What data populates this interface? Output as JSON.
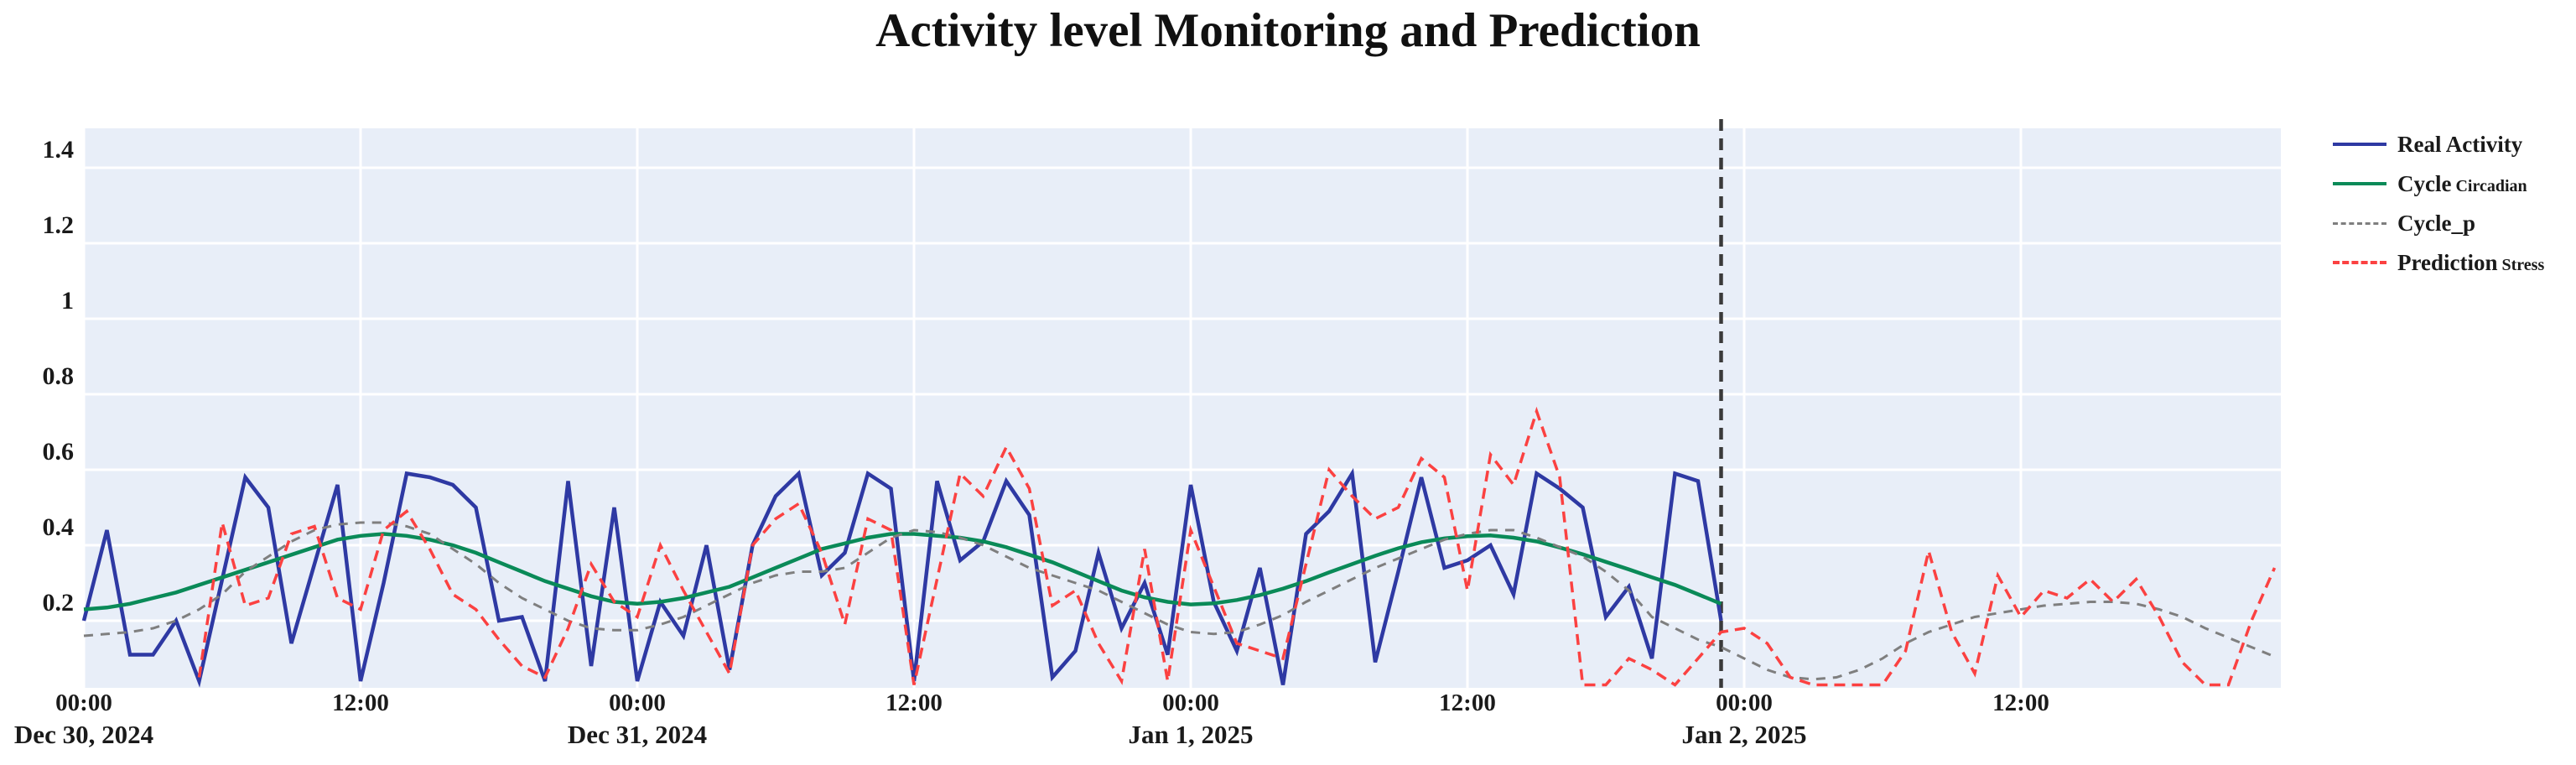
{
  "title": "Activity level Monitoring and Prediction",
  "legend": {
    "items": [
      {
        "label": "Real Activity",
        "sub": ""
      },
      {
        "label": "Cycle",
        "sub": "Circadian"
      },
      {
        "label": "Cycle_p",
        "sub": ""
      },
      {
        "label": "Prediction",
        "sub": "Stress"
      }
    ]
  },
  "chart_data": {
    "type": "line",
    "title": "Activity level Monitoring and Prediction",
    "xlabel": "",
    "ylabel": "",
    "x_axis": {
      "start": "Dec 30, 2024 00:00",
      "hours_per_point": 1,
      "total_hours_shown": 95,
      "tick_interval_hours": 12
    },
    "x_ticks": [
      {
        "hour": 0,
        "time": "00:00",
        "date": "Dec 30, 2024"
      },
      {
        "hour": 12,
        "time": "12:00",
        "date": ""
      },
      {
        "hour": 24,
        "time": "00:00",
        "date": "Dec 31, 2024"
      },
      {
        "hour": 36,
        "time": "12:00",
        "date": ""
      },
      {
        "hour": 48,
        "time": "00:00",
        "date": "Jan 1, 2025"
      },
      {
        "hour": 60,
        "time": "12:00",
        "date": ""
      },
      {
        "hour": 72,
        "time": "00:00",
        "date": "Jan 2, 2025"
      },
      {
        "hour": 84,
        "time": "12:00",
        "date": ""
      }
    ],
    "ytick_values": [
      0.2,
      0.4,
      0.6,
      0.8,
      1.0,
      1.2,
      1.4
    ],
    "ytick_labels": [
      "0.2",
      "0.4",
      "0.6",
      "0.8",
      "1",
      "1.2",
      "1.4"
    ],
    "ylim": [
      0.02,
      1.5
    ],
    "grid": true,
    "legend_position": "outside-right",
    "colors": {
      "plot_bg": "#e8eef8",
      "figure_bg": "#ffffff",
      "gridline": "#ffffff",
      "boundary_line": "#3a3a3a",
      "tick_text": "#1a1a1a"
    },
    "prediction_boundary": {
      "hour": 71,
      "style": "dashed-vertical-line",
      "meaning": "end of real data / start of prediction"
    },
    "series": [
      {
        "name": "Real Activity",
        "color": "#2e39a3",
        "line_style": "solid",
        "width": 4.5,
        "start_hour": 0,
        "values": [
          0.2,
          0.44,
          0.11,
          0.11,
          0.2,
          0.04,
          0.31,
          0.58,
          0.5,
          0.14,
          0.35,
          0.56,
          0.04,
          0.3,
          0.59,
          0.58,
          0.56,
          0.5,
          0.2,
          0.21,
          0.04,
          0.57,
          0.08,
          0.5,
          0.04,
          0.25,
          0.16,
          0.4,
          0.07,
          0.4,
          0.53,
          0.59,
          0.32,
          0.38,
          0.59,
          0.55,
          0.04,
          0.57,
          0.36,
          0.41,
          0.57,
          0.48,
          0.05,
          0.12,
          0.38,
          0.18,
          0.3,
          0.11,
          0.56,
          0.25,
          0.12,
          0.34,
          0.03,
          0.43,
          0.49,
          0.59,
          0.09,
          0.33,
          0.58,
          0.34,
          0.36,
          0.4,
          0.27,
          0.59,
          0.55,
          0.5,
          0.21,
          0.29,
          0.1,
          0.59,
          0.57,
          0.2
        ]
      },
      {
        "name": "Cycle Circadian",
        "color": "#0a8a58",
        "line_style": "solid",
        "width": 4.5,
        "start_hour": 0,
        "values": [
          0.23,
          0.235,
          0.245,
          0.26,
          0.275,
          0.295,
          0.315,
          0.335,
          0.355,
          0.375,
          0.395,
          0.415,
          0.425,
          0.43,
          0.425,
          0.415,
          0.4,
          0.38,
          0.355,
          0.33,
          0.305,
          0.285,
          0.265,
          0.25,
          0.245,
          0.25,
          0.26,
          0.275,
          0.29,
          0.315,
          0.34,
          0.365,
          0.39,
          0.405,
          0.42,
          0.43,
          0.43,
          0.425,
          0.42,
          0.41,
          0.395,
          0.375,
          0.355,
          0.33,
          0.305,
          0.28,
          0.262,
          0.25,
          0.243,
          0.246,
          0.255,
          0.268,
          0.285,
          0.305,
          0.328,
          0.35,
          0.372,
          0.392,
          0.408,
          0.418,
          0.424,
          0.426,
          0.42,
          0.41,
          0.394,
          0.376,
          0.356,
          0.336,
          0.315,
          0.295,
          0.27,
          0.245
        ]
      },
      {
        "name": "Cycle_p",
        "color": "#7f7f7f",
        "line_style": "dashed",
        "width": 3,
        "start_hour": 0,
        "values": [
          0.16,
          0.165,
          0.17,
          0.18,
          0.2,
          0.23,
          0.27,
          0.33,
          0.37,
          0.41,
          0.44,
          0.455,
          0.46,
          0.46,
          0.45,
          0.43,
          0.39,
          0.35,
          0.3,
          0.26,
          0.23,
          0.2,
          0.18,
          0.175,
          0.175,
          0.19,
          0.21,
          0.24,
          0.27,
          0.3,
          0.32,
          0.33,
          0.33,
          0.34,
          0.38,
          0.42,
          0.44,
          0.435,
          0.42,
          0.4,
          0.37,
          0.34,
          0.32,
          0.3,
          0.28,
          0.25,
          0.22,
          0.19,
          0.17,
          0.165,
          0.17,
          0.19,
          0.215,
          0.25,
          0.28,
          0.31,
          0.34,
          0.365,
          0.39,
          0.415,
          0.43,
          0.44,
          0.44,
          0.42,
          0.395,
          0.37,
          0.33,
          0.28,
          0.21,
          0.18,
          0.15,
          0.13,
          0.1,
          0.07,
          0.05,
          0.045,
          0.05,
          0.07,
          0.1,
          0.14,
          0.17,
          0.19,
          0.21,
          0.22,
          0.23,
          0.24,
          0.245,
          0.25,
          0.25,
          0.245,
          0.23,
          0.21,
          0.18,
          0.155,
          0.13,
          0.105
        ]
      },
      {
        "name": "Prediction Stress",
        "color": "#fb4141",
        "line_style": "dashed",
        "width": 3.5,
        "start_hour": 5,
        "values": [
          0.05,
          0.46,
          0.24,
          0.26,
          0.43,
          0.45,
          0.26,
          0.23,
          0.44,
          0.49,
          0.39,
          0.27,
          0.23,
          0.15,
          0.08,
          0.05,
          0.18,
          0.35,
          0.25,
          0.21,
          0.4,
          0.28,
          0.17,
          0.06,
          0.4,
          0.47,
          0.51,
          0.38,
          0.19,
          0.47,
          0.44,
          0.03,
          0.31,
          0.59,
          0.53,
          0.66,
          0.55,
          0.24,
          0.28,
          0.14,
          0.04,
          0.39,
          0.04,
          0.44,
          0.29,
          0.14,
          0.12,
          0.1,
          0.35,
          0.6,
          0.53,
          0.47,
          0.5,
          0.63,
          0.58,
          0.28,
          0.64,
          0.56,
          0.755,
          0.58,
          0.03,
          0.03,
          0.1,
          0.07,
          0.03,
          0.1,
          0.17,
          0.18,
          0.14,
          0.05,
          0.03,
          0.03,
          0.03,
          0.03,
          0.12,
          0.385,
          0.17,
          0.06,
          0.32,
          0.21,
          0.28,
          0.26,
          0.31,
          0.25,
          0.31,
          0.21,
          0.09,
          0.03,
          0.03,
          0.2,
          0.34
        ]
      }
    ]
  }
}
